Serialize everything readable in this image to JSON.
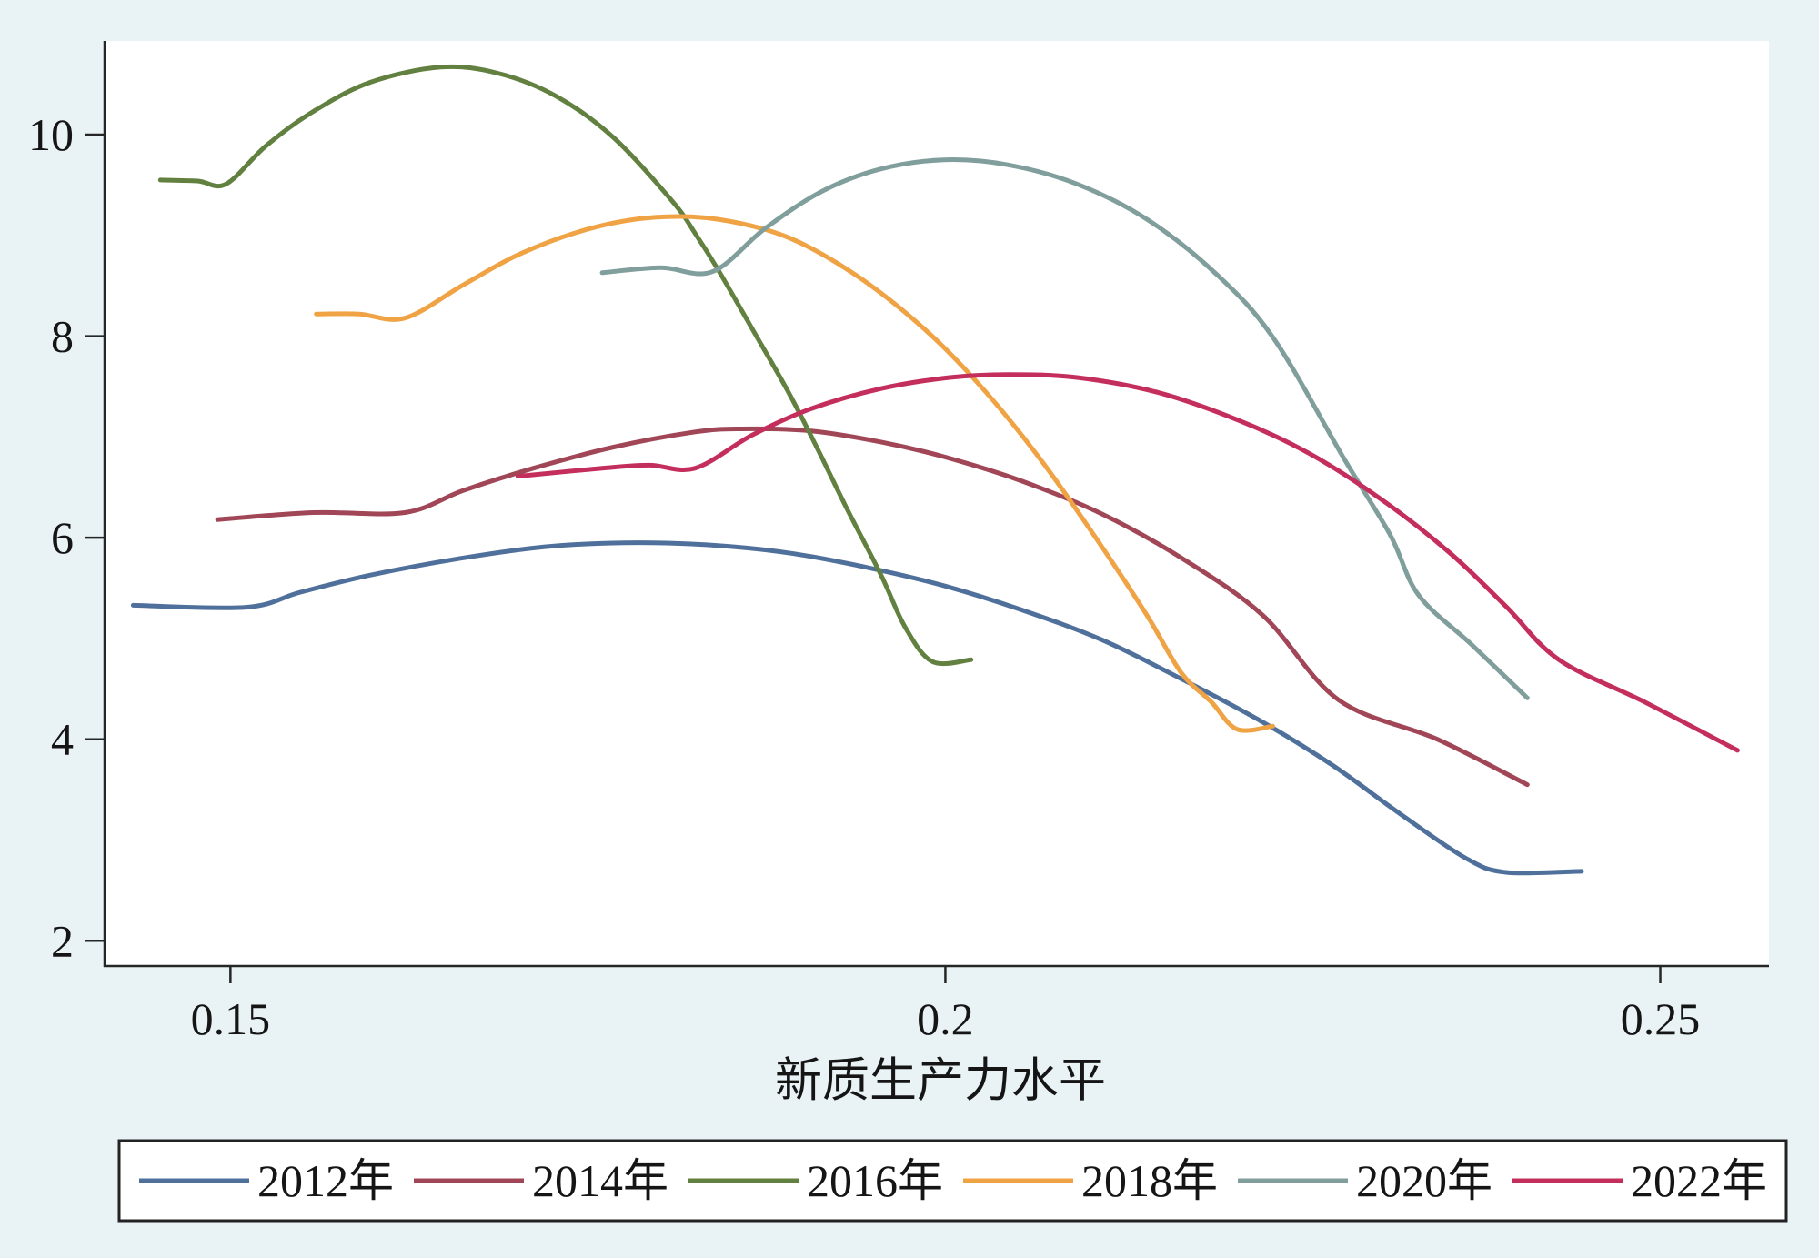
{
  "chart_data": {
    "type": "line",
    "xlabel": "新质生产力水平",
    "xlim": [
      0.1412,
      0.2576
    ],
    "ylim": [
      1.75,
      10.93
    ],
    "xticks": [
      0.15,
      0.2,
      0.25
    ],
    "yticks": [
      2,
      4,
      6,
      8,
      10
    ],
    "grid": false,
    "legend": "bottom",
    "series": [
      {
        "name": "2012年",
        "color": "#50709c",
        "x": [
          0.1432,
          0.1511,
          0.1549,
          0.1598,
          0.1663,
          0.172,
          0.1776,
          0.1833,
          0.189,
          0.1947,
          0.2,
          0.2052,
          0.2109,
          0.2165,
          0.2222,
          0.2271,
          0.2319,
          0.2364,
          0.2392,
          0.2445
        ],
        "y": [
          5.33,
          5.31,
          5.46,
          5.63,
          5.8,
          5.91,
          5.95,
          5.93,
          5.85,
          5.7,
          5.52,
          5.29,
          4.99,
          4.6,
          4.17,
          3.74,
          3.25,
          2.82,
          2.68,
          2.69
        ]
      },
      {
        "name": "2014年",
        "color": "#a04656",
        "x": [
          0.1491,
          0.1558,
          0.1622,
          0.1663,
          0.1712,
          0.1768,
          0.1825,
          0.1857,
          0.1906,
          0.1955,
          0.2,
          0.2052,
          0.2109,
          0.2165,
          0.2222,
          0.2275,
          0.2344,
          0.2407
        ],
        "y": [
          6.18,
          6.25,
          6.25,
          6.47,
          6.69,
          6.9,
          7.05,
          7.08,
          7.06,
          6.95,
          6.8,
          6.57,
          6.24,
          5.8,
          5.23,
          4.39,
          4.0,
          3.55
        ]
      },
      {
        "name": "2016年",
        "color": "#62803f",
        "x": [
          0.1451,
          0.1477,
          0.1497,
          0.1525,
          0.1558,
          0.1598,
          0.1647,
          0.1687,
          0.1728,
          0.1768,
          0.1809,
          0.1825,
          0.1841,
          0.1865,
          0.189,
          0.191,
          0.193,
          0.1955,
          0.1972,
          0.1991,
          0.2018
        ],
        "y": [
          9.55,
          9.54,
          9.51,
          9.89,
          10.23,
          10.52,
          10.67,
          10.61,
          10.38,
          9.97,
          9.34,
          9.02,
          8.66,
          8.07,
          7.45,
          6.9,
          6.32,
          5.63,
          5.11,
          4.77,
          4.79
        ]
      },
      {
        "name": "2018年",
        "color": "#efa344",
        "x": [
          0.156,
          0.159,
          0.1622,
          0.1663,
          0.1703,
          0.1752,
          0.1797,
          0.1841,
          0.189,
          0.1938,
          0.1987,
          0.2028,
          0.2068,
          0.2109,
          0.2141,
          0.2165,
          0.2186,
          0.2204,
          0.2229
        ],
        "y": [
          8.22,
          8.22,
          8.18,
          8.51,
          8.82,
          9.07,
          9.18,
          9.16,
          8.98,
          8.6,
          8.05,
          7.45,
          6.75,
          5.92,
          5.23,
          4.66,
          4.37,
          4.1,
          4.13
        ]
      },
      {
        "name": "2020年",
        "color": "#809e9b",
        "x": [
          0.176,
          0.1801,
          0.1837,
          0.1874,
          0.1914,
          0.1955,
          0.1999,
          0.2044,
          0.2092,
          0.2141,
          0.219,
          0.223,
          0.2279,
          0.2311,
          0.2331,
          0.2368,
          0.2407
        ],
        "y": [
          8.63,
          8.68,
          8.64,
          9.07,
          9.44,
          9.66,
          9.75,
          9.7,
          9.51,
          9.16,
          8.61,
          7.97,
          6.78,
          6.03,
          5.43,
          4.94,
          4.41
        ]
      },
      {
        "name": "2022年",
        "color": "#c42e5c",
        "x": [
          0.1701,
          0.176,
          0.1793,
          0.1825,
          0.1865,
          0.1906,
          0.1955,
          0.2003,
          0.2044,
          0.2092,
          0.2149,
          0.2206,
          0.2254,
          0.2303,
          0.2352,
          0.2392,
          0.2429,
          0.2489,
          0.2554
        ],
        "y": [
          6.61,
          6.69,
          6.72,
          6.69,
          7.02,
          7.28,
          7.48,
          7.59,
          7.62,
          7.59,
          7.44,
          7.16,
          6.84,
          6.4,
          5.86,
          5.32,
          4.79,
          4.37,
          3.89
        ]
      }
    ]
  }
}
